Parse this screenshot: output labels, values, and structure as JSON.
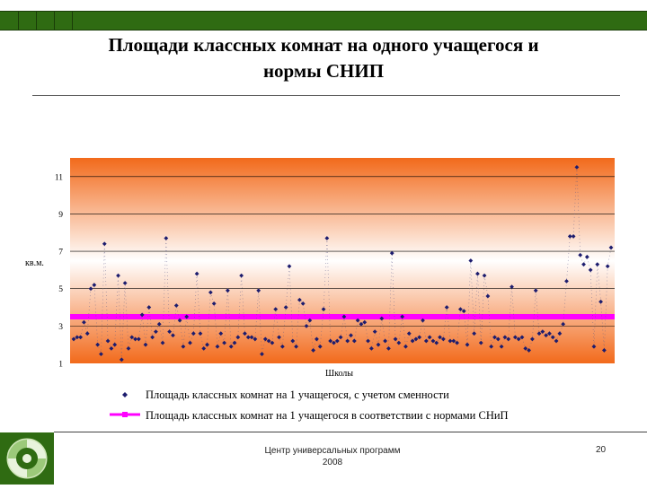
{
  "slide": {
    "title_line1": "Площади классных комнат на одного учащегося и",
    "title_line2": "нормы СНИП",
    "footer_line1": "Центр универсальных программ",
    "footer_line2": "2008",
    "page_number": "20"
  },
  "colors": {
    "header_bar": "#2f6b12",
    "plot_gradient_edge": "#f26a1b",
    "plot_gradient_center": "#ffffff",
    "series_actual": "#1c1c6e",
    "series_norm": "#ff00ff"
  },
  "chart_data": {
    "type": "scatter",
    "title": "",
    "xlabel": "Школы",
    "ylabel": "кв.м.",
    "ylim": [
      1,
      12
    ],
    "yticks": [
      1,
      3,
      5,
      7,
      9,
      11
    ],
    "grid": true,
    "legend_position": "bottom",
    "series": [
      {
        "name": "Площадь классных комнат на 1 учащегося, с учетом сменности",
        "marker": "diamond",
        "values": [
          2.3,
          2.4,
          2.4,
          3.2,
          2.6,
          5.0,
          5.2,
          2.0,
          1.5,
          7.4,
          2.2,
          1.8,
          2.0,
          5.7,
          1.2,
          5.3,
          1.8,
          2.4,
          2.3,
          2.3,
          3.6,
          2.0,
          4.0,
          2.4,
          2.7,
          3.1,
          2.1,
          7.7,
          2.7,
          2.5,
          4.1,
          3.3,
          1.9,
          3.5,
          2.1,
          2.6,
          5.8,
          2.6,
          1.8,
          2.0,
          4.8,
          4.2,
          1.9,
          2.6,
          2.1,
          4.9,
          1.9,
          2.1,
          2.4,
          5.7,
          2.6,
          2.4,
          2.4,
          2.3,
          4.9,
          1.5,
          2.3,
          2.2,
          2.1,
          3.9,
          2.4,
          1.9,
          4.0,
          6.2,
          2.2,
          1.9,
          4.4,
          4.2,
          3.0,
          3.3,
          1.7,
          2.3,
          1.9,
          3.9,
          7.7,
          2.2,
          2.1,
          2.2,
          2.4,
          3.5,
          2.2,
          2.5,
          2.2,
          3.3,
          3.1,
          3.2,
          2.2,
          1.8,
          2.7,
          2.0,
          3.4,
          2.2,
          1.8,
          6.9,
          2.3,
          2.1,
          3.5,
          1.9,
          2.6,
          2.2,
          2.3,
          2.4,
          3.3,
          2.2,
          2.4,
          2.2,
          2.1,
          2.4,
          2.3,
          4.0,
          2.2,
          2.2,
          2.1,
          3.9,
          3.8,
          2.0,
          6.5,
          2.6,
          5.8,
          2.1,
          5.7,
          4.6,
          1.9,
          2.4,
          2.3,
          1.9,
          2.4,
          2.3,
          5.1,
          2.4,
          2.3,
          2.4,
          1.8,
          1.7,
          2.3,
          4.9,
          2.6,
          2.7,
          2.5,
          2.6,
          2.4,
          2.2,
          2.6,
          3.1,
          5.4,
          7.8,
          7.8,
          11.5,
          6.8,
          6.3,
          6.7,
          6.0,
          1.9,
          6.3,
          4.3,
          1.7,
          6.2,
          7.2
        ]
      },
      {
        "name": "Площадь классных комнат на 1 учащегося в соответствии с нормами СНиП",
        "marker": "square",
        "value": 3.5
      }
    ]
  }
}
